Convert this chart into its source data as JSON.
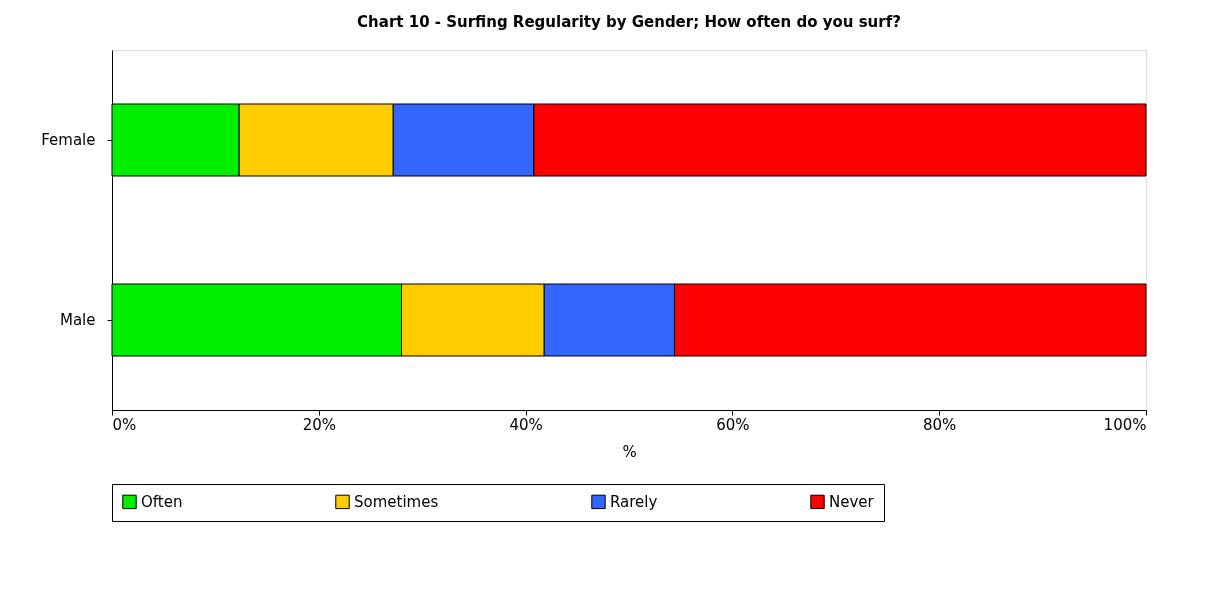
{
  "chart_data": {
    "type": "bar",
    "orientation": "horizontal",
    "stacked": true,
    "title": "Chart 10 - Surfing Regularity by Gender; How often do you surf?",
    "xlabel": "%",
    "categories": [
      "Female",
      "Male"
    ],
    "series": [
      {
        "name": "Often",
        "color": "#00ee00",
        "values": [
          12.3,
          28.0
        ]
      },
      {
        "name": "Sometimes",
        "color": "#ffcc00",
        "values": [
          14.9,
          13.8
        ]
      },
      {
        "name": "Rarely",
        "color": "#3366ff",
        "values": [
          13.6,
          12.6
        ]
      },
      {
        "name": "Never",
        "color": "#ff0000",
        "values": [
          59.2,
          45.6
        ]
      }
    ],
    "xlim": [
      0,
      100
    ],
    "xticks": [
      {
        "value": 0,
        "label": "0%"
      },
      {
        "value": 20,
        "label": "20%"
      },
      {
        "value": 40,
        "label": "40%"
      },
      {
        "value": 60,
        "label": "60%"
      },
      {
        "value": 80,
        "label": "80%"
      },
      {
        "value": 100,
        "label": "100%"
      }
    ],
    "grid": false,
    "legend": "bottom"
  }
}
